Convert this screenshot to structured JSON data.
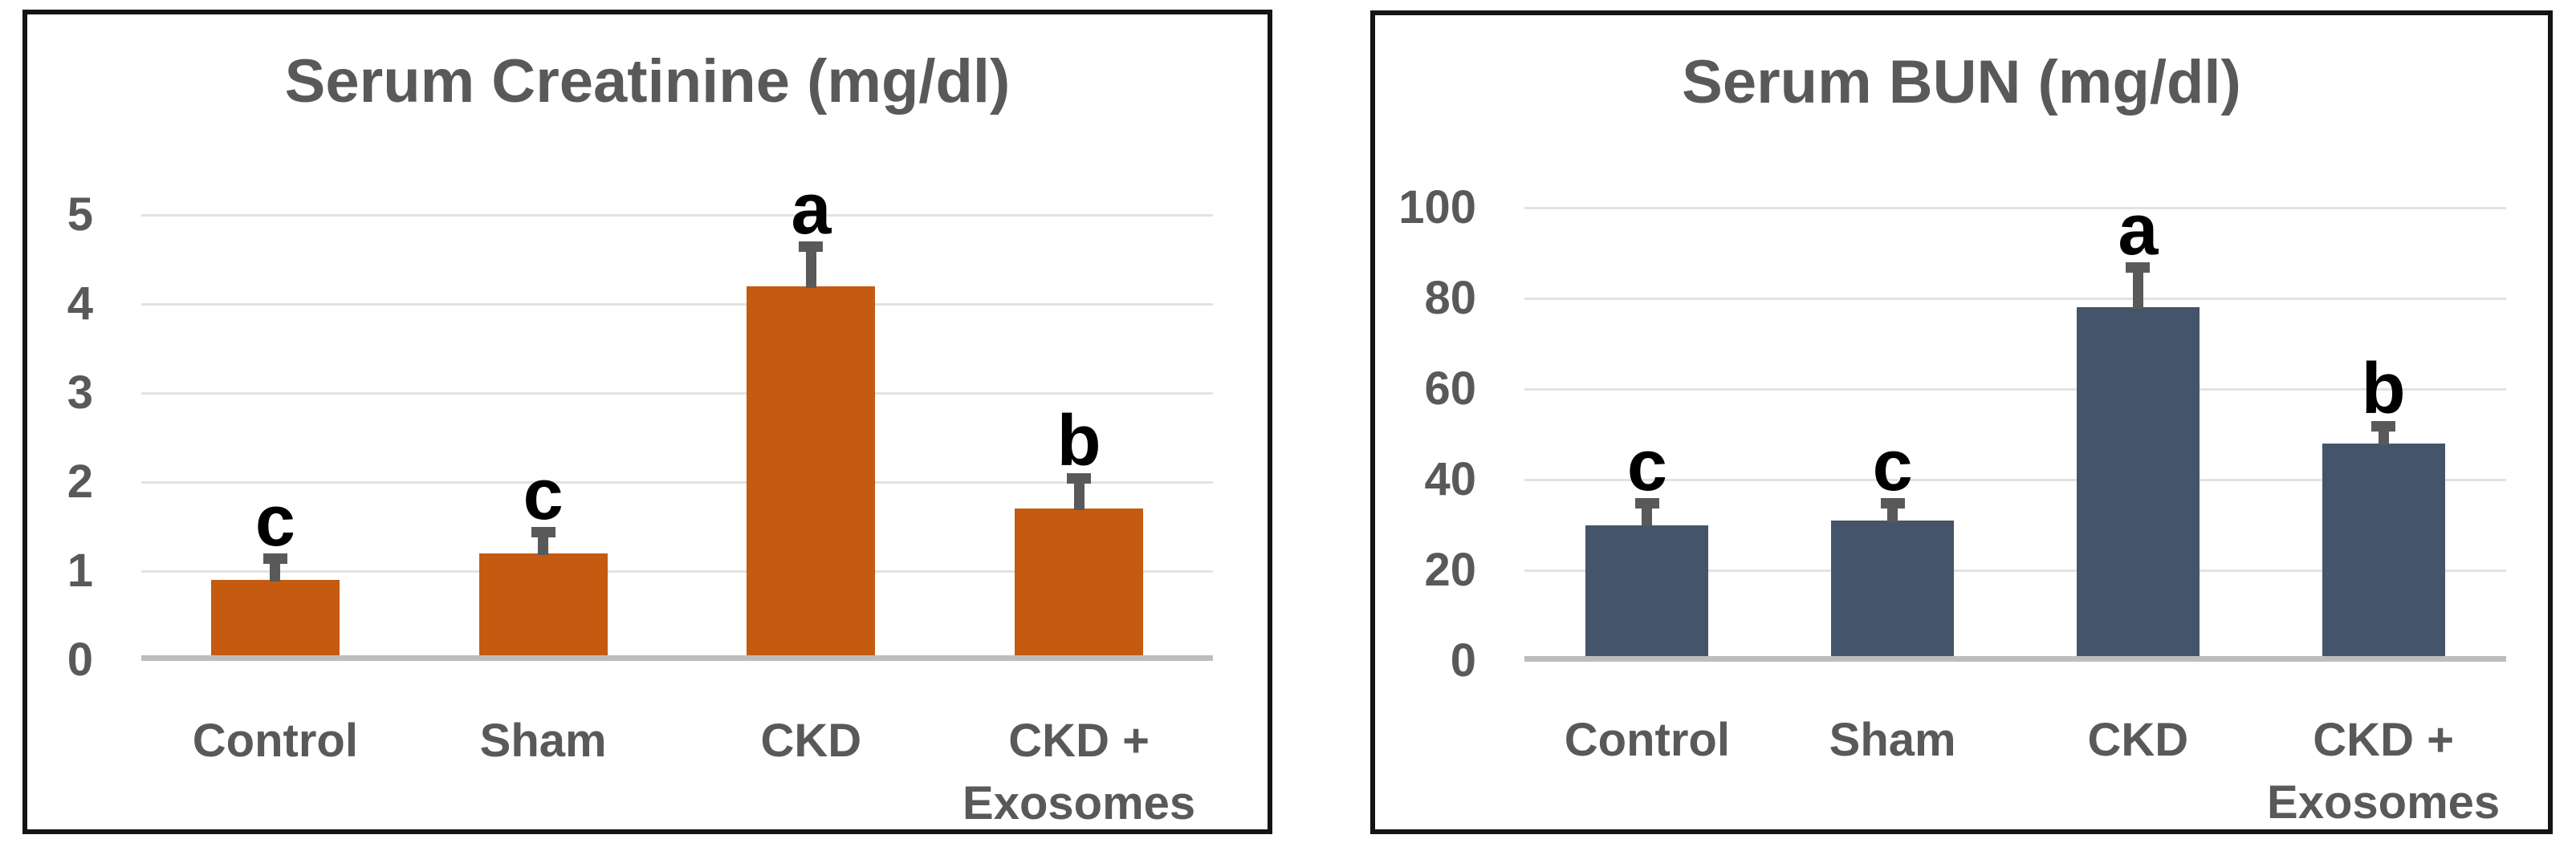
{
  "figure": {
    "background": "#ffffff",
    "panel_count": 2
  },
  "styles": {
    "title_color": "#595959",
    "axis_label_color": "#595959",
    "category_label_color": "#595959",
    "gridline_color": "#e2e2e2",
    "baseline_color": "#bdbdbd",
    "error_bar_color": "#595959",
    "letter_color": "#000000",
    "panel_border_color": "#141414",
    "creatinine_bar_color": "#C55A11",
    "bun_bar_color": "#44546A"
  },
  "chart_data": [
    {
      "type": "bar",
      "title": "Serum Creatinine (mg/dl)",
      "xlabel": "",
      "ylabel": "",
      "categories": [
        "Control",
        "Sham",
        "CKD",
        "CKD + Exosomes"
      ],
      "values": [
        0.9,
        1.2,
        4.2,
        1.7
      ],
      "error_top": [
        1.2,
        1.5,
        4.7,
        2.1
      ],
      "sig_letters": [
        "c",
        "c",
        "a",
        "b"
      ],
      "bar_color": "#C55A11",
      "ylim": [
        0,
        5
      ],
      "yticks": [
        0,
        1,
        2,
        3,
        4,
        5
      ],
      "grid": true,
      "legend": "none"
    },
    {
      "type": "bar",
      "title": "Serum BUN (mg/dl)",
      "xlabel": "",
      "ylabel": "",
      "categories": [
        "Control",
        "Sham",
        "CKD",
        "CKD + Exosomes"
      ],
      "values": [
        30,
        31,
        78,
        48
      ],
      "error_top": [
        36,
        36,
        88,
        53
      ],
      "sig_letters": [
        "c",
        "c",
        "a",
        "b"
      ],
      "bar_color": "#44546A",
      "ylim": [
        0,
        100
      ],
      "yticks": [
        0,
        20,
        40,
        60,
        80,
        100
      ],
      "grid": true,
      "legend": "none"
    }
  ]
}
